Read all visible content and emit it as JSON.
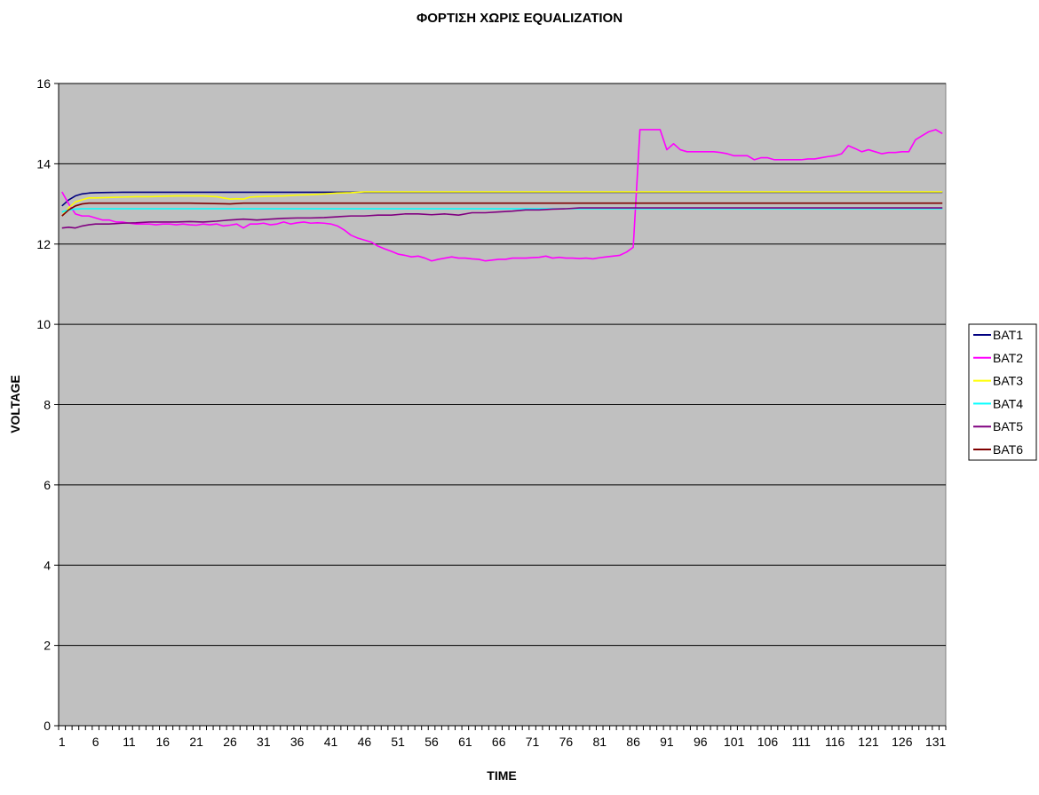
{
  "chart_data": {
    "type": "line",
    "title": "ΦΟΡΤΙΣΗ ΧΩΡΙΣ EQUALIZATION",
    "xlabel": "TIME",
    "ylabel": "VOLTAGE",
    "xlim": [
      1,
      132
    ],
    "ylim": [
      0,
      16
    ],
    "y_ticks": [
      "0",
      "2",
      "4",
      "6",
      "8",
      "10",
      "12",
      "14",
      "16"
    ],
    "x_tick_labels": [
      "1",
      "6",
      "11",
      "16",
      "21",
      "26",
      "31",
      "36",
      "41",
      "46",
      "51",
      "56",
      "61",
      "66",
      "71",
      "76",
      "81",
      "86",
      "91",
      "96",
      "101",
      "106",
      "111",
      "116",
      "121",
      "126",
      "131"
    ],
    "grid": "horizontal",
    "legend_position": "right",
    "plot_background": "#c0c0c0",
    "series": [
      {
        "name": "BAT1",
        "color": "#000080",
        "points": [
          [
            1,
            12.95
          ],
          [
            2,
            13.1
          ],
          [
            3,
            13.2
          ],
          [
            4,
            13.25
          ],
          [
            5,
            13.27
          ],
          [
            6,
            13.28
          ],
          [
            10,
            13.29
          ],
          [
            20,
            13.29
          ],
          [
            30,
            13.29
          ],
          [
            40,
            13.29
          ],
          [
            44,
            13.29
          ],
          [
            132,
            13.29
          ]
        ]
      },
      {
        "name": "BAT2",
        "color": "#ff00ff",
        "points": [
          [
            1,
            13.3
          ],
          [
            2,
            13.0
          ],
          [
            3,
            12.75
          ],
          [
            4,
            12.7
          ],
          [
            5,
            12.7
          ],
          [
            6,
            12.65
          ],
          [
            7,
            12.6
          ],
          [
            8,
            12.6
          ],
          [
            9,
            12.55
          ],
          [
            10,
            12.55
          ],
          [
            11,
            12.52
          ],
          [
            12,
            12.5
          ],
          [
            13,
            12.5
          ],
          [
            14,
            12.5
          ],
          [
            15,
            12.48
          ],
          [
            16,
            12.5
          ],
          [
            17,
            12.5
          ],
          [
            18,
            12.48
          ],
          [
            19,
            12.5
          ],
          [
            20,
            12.48
          ],
          [
            21,
            12.47
          ],
          [
            22,
            12.5
          ],
          [
            23,
            12.48
          ],
          [
            24,
            12.5
          ],
          [
            25,
            12.45
          ],
          [
            26,
            12.47
          ],
          [
            27,
            12.5
          ],
          [
            28,
            12.4
          ],
          [
            29,
            12.5
          ],
          [
            30,
            12.5
          ],
          [
            31,
            12.52
          ],
          [
            32,
            12.48
          ],
          [
            33,
            12.5
          ],
          [
            34,
            12.55
          ],
          [
            35,
            12.5
          ],
          [
            36,
            12.53
          ],
          [
            37,
            12.55
          ],
          [
            38,
            12.52
          ],
          [
            39,
            12.53
          ],
          [
            40,
            12.52
          ],
          [
            41,
            12.5
          ],
          [
            42,
            12.45
          ],
          [
            43,
            12.35
          ],
          [
            44,
            12.22
          ],
          [
            45,
            12.15
          ],
          [
            46,
            12.1
          ],
          [
            47,
            12.05
          ],
          [
            48,
            11.95
          ],
          [
            49,
            11.88
          ],
          [
            50,
            11.82
          ],
          [
            51,
            11.75
          ],
          [
            52,
            11.72
          ],
          [
            53,
            11.68
          ],
          [
            54,
            11.7
          ],
          [
            55,
            11.65
          ],
          [
            56,
            11.58
          ],
          [
            57,
            11.62
          ],
          [
            58,
            11.65
          ],
          [
            59,
            11.68
          ],
          [
            60,
            11.65
          ],
          [
            61,
            11.65
          ],
          [
            62,
            11.63
          ],
          [
            63,
            11.62
          ],
          [
            64,
            11.58
          ],
          [
            65,
            11.6
          ],
          [
            66,
            11.62
          ],
          [
            67,
            11.62
          ],
          [
            68,
            11.65
          ],
          [
            69,
            11.65
          ],
          [
            70,
            11.65
          ],
          [
            71,
            11.66
          ],
          [
            72,
            11.67
          ],
          [
            73,
            11.7
          ],
          [
            74,
            11.65
          ],
          [
            75,
            11.67
          ],
          [
            76,
            11.65
          ],
          [
            77,
            11.65
          ],
          [
            78,
            11.64
          ],
          [
            79,
            11.65
          ],
          [
            80,
            11.63
          ],
          [
            81,
            11.66
          ],
          [
            82,
            11.68
          ],
          [
            83,
            11.7
          ],
          [
            84,
            11.72
          ],
          [
            85,
            11.8
          ],
          [
            86,
            11.92
          ],
          [
            87,
            14.85
          ],
          [
            88,
            14.85
          ],
          [
            89,
            14.85
          ],
          [
            90,
            14.85
          ],
          [
            91,
            14.35
          ],
          [
            92,
            14.5
          ],
          [
            93,
            14.35
          ],
          [
            94,
            14.3
          ],
          [
            95,
            14.3
          ],
          [
            96,
            14.3
          ],
          [
            97,
            14.3
          ],
          [
            98,
            14.3
          ],
          [
            99,
            14.28
          ],
          [
            100,
            14.25
          ],
          [
            101,
            14.2
          ],
          [
            102,
            14.2
          ],
          [
            103,
            14.2
          ],
          [
            104,
            14.1
          ],
          [
            105,
            14.15
          ],
          [
            106,
            14.15
          ],
          [
            107,
            14.1
          ],
          [
            108,
            14.1
          ],
          [
            109,
            14.1
          ],
          [
            110,
            14.1
          ],
          [
            111,
            14.1
          ],
          [
            112,
            14.12
          ],
          [
            113,
            14.12
          ],
          [
            114,
            14.15
          ],
          [
            115,
            14.18
          ],
          [
            116,
            14.2
          ],
          [
            117,
            14.25
          ],
          [
            118,
            14.45
          ],
          [
            119,
            14.38
          ],
          [
            120,
            14.3
          ],
          [
            121,
            14.35
          ],
          [
            122,
            14.3
          ],
          [
            123,
            14.25
          ],
          [
            124,
            14.28
          ],
          [
            125,
            14.28
          ],
          [
            126,
            14.3
          ],
          [
            127,
            14.3
          ],
          [
            128,
            14.6
          ],
          [
            129,
            14.7
          ],
          [
            130,
            14.8
          ],
          [
            131,
            14.85
          ],
          [
            132,
            14.75
          ]
        ]
      },
      {
        "name": "BAT3",
        "color": "#ffff00",
        "points": [
          [
            1,
            12.7
          ],
          [
            2,
            12.9
          ],
          [
            3,
            13.05
          ],
          [
            4,
            13.1
          ],
          [
            5,
            13.15
          ],
          [
            6,
            13.15
          ],
          [
            8,
            13.16
          ],
          [
            10,
            13.17
          ],
          [
            12,
            13.18
          ],
          [
            14,
            13.18
          ],
          [
            16,
            13.19
          ],
          [
            18,
            13.2
          ],
          [
            20,
            13.2
          ],
          [
            22,
            13.2
          ],
          [
            24,
            13.18
          ],
          [
            25,
            13.15
          ],
          [
            26,
            13.12
          ],
          [
            27,
            13.13
          ],
          [
            28,
            13.12
          ],
          [
            29,
            13.17
          ],
          [
            30,
            13.18
          ],
          [
            32,
            13.19
          ],
          [
            34,
            13.2
          ],
          [
            36,
            13.22
          ],
          [
            38,
            13.23
          ],
          [
            40,
            13.25
          ],
          [
            42,
            13.27
          ],
          [
            44,
            13.28
          ],
          [
            46,
            13.3
          ],
          [
            132,
            13.3
          ]
        ]
      },
      {
        "name": "BAT4",
        "color": "#00ffff",
        "points": [
          [
            1,
            12.8
          ],
          [
            2,
            12.85
          ],
          [
            3,
            12.87
          ],
          [
            4,
            12.88
          ],
          [
            5,
            12.88
          ],
          [
            132,
            12.88
          ]
        ]
      },
      {
        "name": "BAT5",
        "color": "#800080",
        "points": [
          [
            1,
            12.4
          ],
          [
            2,
            12.42
          ],
          [
            3,
            12.4
          ],
          [
            4,
            12.45
          ],
          [
            5,
            12.48
          ],
          [
            6,
            12.5
          ],
          [
            8,
            12.5
          ],
          [
            10,
            12.52
          ],
          [
            12,
            12.53
          ],
          [
            14,
            12.55
          ],
          [
            16,
            12.55
          ],
          [
            18,
            12.55
          ],
          [
            20,
            12.56
          ],
          [
            22,
            12.55
          ],
          [
            24,
            12.57
          ],
          [
            26,
            12.6
          ],
          [
            28,
            12.62
          ],
          [
            30,
            12.6
          ],
          [
            32,
            12.62
          ],
          [
            34,
            12.64
          ],
          [
            36,
            12.65
          ],
          [
            38,
            12.65
          ],
          [
            40,
            12.66
          ],
          [
            42,
            12.68
          ],
          [
            44,
            12.7
          ],
          [
            46,
            12.7
          ],
          [
            48,
            12.72
          ],
          [
            50,
            12.72
          ],
          [
            52,
            12.75
          ],
          [
            54,
            12.75
          ],
          [
            56,
            12.73
          ],
          [
            58,
            12.75
          ],
          [
            60,
            12.72
          ],
          [
            62,
            12.78
          ],
          [
            64,
            12.78
          ],
          [
            66,
            12.8
          ],
          [
            68,
            12.82
          ],
          [
            70,
            12.85
          ],
          [
            72,
            12.85
          ],
          [
            74,
            12.87
          ],
          [
            76,
            12.88
          ],
          [
            78,
            12.9
          ],
          [
            80,
            12.9
          ],
          [
            82,
            12.9
          ],
          [
            84,
            12.9
          ],
          [
            86,
            12.9
          ],
          [
            132,
            12.9
          ]
        ]
      },
      {
        "name": "BAT6",
        "color": "#800000",
        "points": [
          [
            1,
            12.7
          ],
          [
            2,
            12.85
          ],
          [
            3,
            12.95
          ],
          [
            4,
            13.0
          ],
          [
            5,
            13.02
          ],
          [
            6,
            13.02
          ],
          [
            10,
            13.02
          ],
          [
            20,
            13.02
          ],
          [
            26,
            13.0
          ],
          [
            28,
            13.02
          ],
          [
            40,
            13.02
          ],
          [
            132,
            13.02
          ]
        ]
      }
    ]
  }
}
